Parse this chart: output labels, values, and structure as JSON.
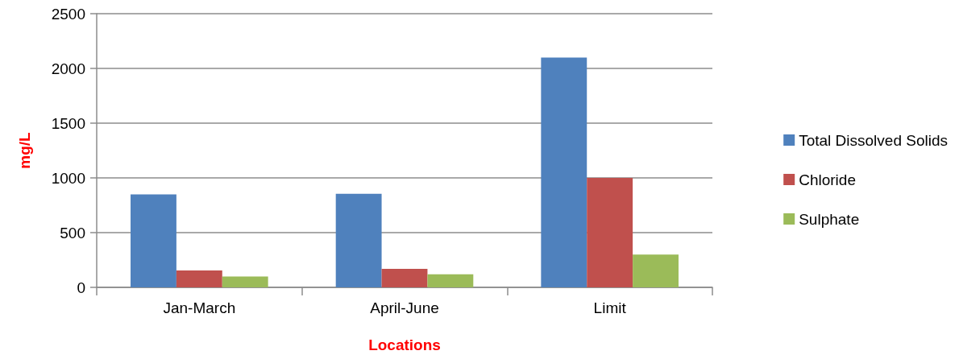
{
  "chart_data": {
    "type": "bar",
    "xlabel": "Locations",
    "ylabel": "mg/L",
    "categories": [
      "Jan-March",
      "April-June",
      "Limit"
    ],
    "series": [
      {
        "name": "Total Dissolved Solids",
        "color": "#4f81bd",
        "values": [
          850,
          855,
          2100
        ]
      },
      {
        "name": "Chloride",
        "color": "#c0504d",
        "values": [
          155,
          170,
          1000
        ]
      },
      {
        "name": "Sulphate",
        "color": "#9bbb59",
        "values": [
          100,
          120,
          300
        ]
      }
    ],
    "ylim": [
      0,
      2500
    ],
    "yticks": [
      0,
      500,
      1000,
      1500,
      2000,
      2500
    ],
    "grid": "y",
    "legend": "right"
  }
}
